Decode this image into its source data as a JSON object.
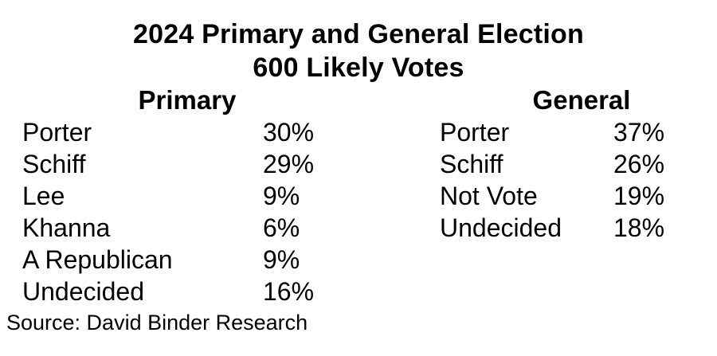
{
  "page": {
    "background_color": "#ffffff",
    "text_color": "#000000"
  },
  "chart_data": {
    "type": "table",
    "title": "2024 Primary and General Election",
    "subtitle": "600 Likely Votes",
    "tables": [
      {
        "header": "Primary",
        "rows": [
          {
            "label": "Porter",
            "value": "30%"
          },
          {
            "label": "Schiff",
            "value": "29%"
          },
          {
            "label": "Lee",
            "value": "9%"
          },
          {
            "label": "Khanna",
            "value": "6%"
          },
          {
            "label": "A Republican",
            "value": "9%"
          },
          {
            "label": "Undecided",
            "value": "16%"
          }
        ]
      },
      {
        "header": "General",
        "rows": [
          {
            "label": "Porter",
            "value": "37%"
          },
          {
            "label": "Schiff",
            "value": "26%"
          },
          {
            "label": "Not Vote",
            "value": "19%"
          },
          {
            "label": "Undecided",
            "value": "18%"
          }
        ]
      }
    ],
    "source": "Source: David Binder Research"
  }
}
